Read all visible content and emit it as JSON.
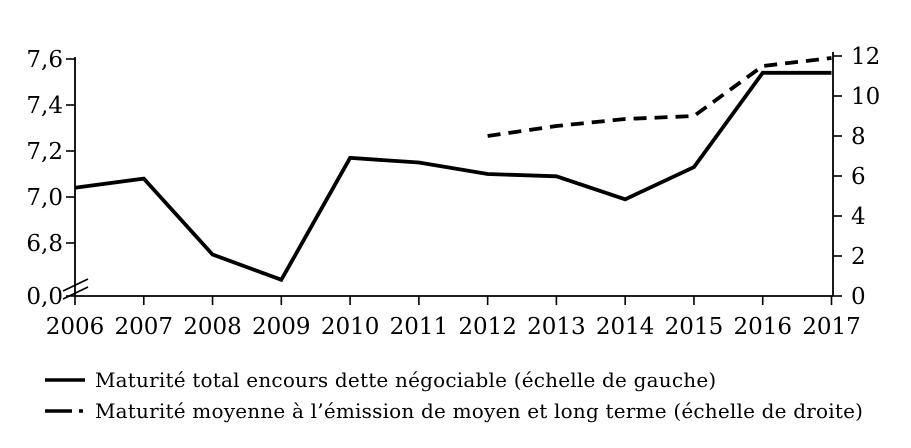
{
  "chart_data": {
    "type": "line",
    "title": "",
    "categories": [
      "2006",
      "2007",
      "2008",
      "2009",
      "2010",
      "2011",
      "2012",
      "2013",
      "2014",
      "2015",
      "2016",
      "2017"
    ],
    "series": [
      {
        "name": "Maturité total encours dette négociable (échelle de gauche)",
        "axis": "left",
        "style": "solid",
        "values": [
          7.04,
          7.08,
          6.75,
          6.64,
          7.17,
          7.15,
          7.1,
          7.09,
          6.99,
          7.13,
          7.54,
          7.54
        ]
      },
      {
        "name": "Maturité moyenne à l’émission de moyen et long terme (échelle de droite)",
        "axis": "right",
        "style": "dashed",
        "values": [
          null,
          null,
          null,
          null,
          null,
          null,
          8.0,
          8.5,
          8.85,
          9.0,
          11.5,
          11.9
        ]
      }
    ],
    "left_axis": {
      "tick_labels": [
        "7,6",
        "7,4",
        "7,2",
        "7,0",
        "6,8",
        "0,0"
      ],
      "tick_values": [
        7.6,
        7.4,
        7.2,
        7.0,
        6.8,
        0.0
      ],
      "visible_range": [
        6.8,
        7.6
      ],
      "has_break": true
    },
    "right_axis": {
      "tick_labels": [
        "12",
        "10",
        "8",
        "6",
        "4",
        "2",
        "0"
      ],
      "tick_values": [
        12,
        10,
        8,
        6,
        4,
        2,
        0
      ],
      "range": [
        0,
        12
      ]
    },
    "grid": false,
    "legend_position": "bottom-left",
    "colors": {
      "line": "#000000",
      "background": "#ffffff",
      "text": "#000000"
    }
  }
}
